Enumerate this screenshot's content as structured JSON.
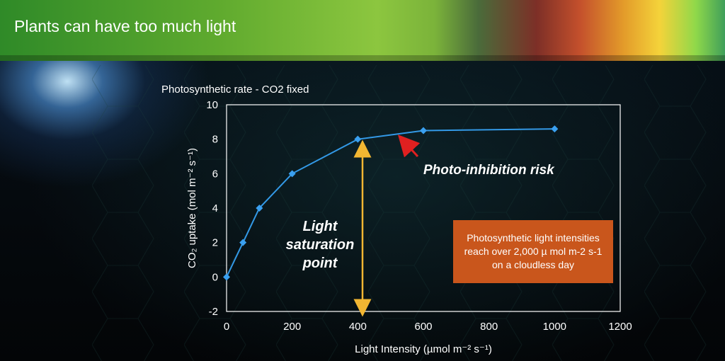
{
  "header": {
    "title": "Plants can have too much light"
  },
  "chart_data": {
    "type": "line",
    "title": "Photosynthetic rate - CO2 fixed",
    "xlabel": "Light Intensity (µmol m⁻² s⁻¹)",
    "ylabel": "CO₂ uptake (mol m⁻² s⁻¹)",
    "xlim": [
      0,
      1200
    ],
    "ylim": [
      -2,
      10
    ],
    "xticks": [
      0,
      200,
      400,
      600,
      800,
      1000,
      1200
    ],
    "yticks": [
      -2,
      0,
      2,
      4,
      6,
      8,
      10
    ],
    "grid": false,
    "series": [
      {
        "x": [
          0,
          50,
          100,
          200,
          400,
          600,
          1000
        ],
        "y": [
          0,
          2,
          4,
          6,
          8,
          8.5,
          8.6
        ]
      }
    ],
    "annotations": {
      "photo_inhibition": "Photo-inhibition risk",
      "light_saturation": [
        "Light",
        "saturation",
        "point"
      ],
      "callout": "Photosynthetic light intensities reach over 2,000 µ mol m-2 s-1 on a cloudless day"
    },
    "colors": {
      "line": "#3399e6",
      "marker": "#3aa0f0",
      "saturation_arrow": "#f2b632",
      "inhibition_arrow": "#e02020",
      "callout": "#c9561c"
    }
  }
}
